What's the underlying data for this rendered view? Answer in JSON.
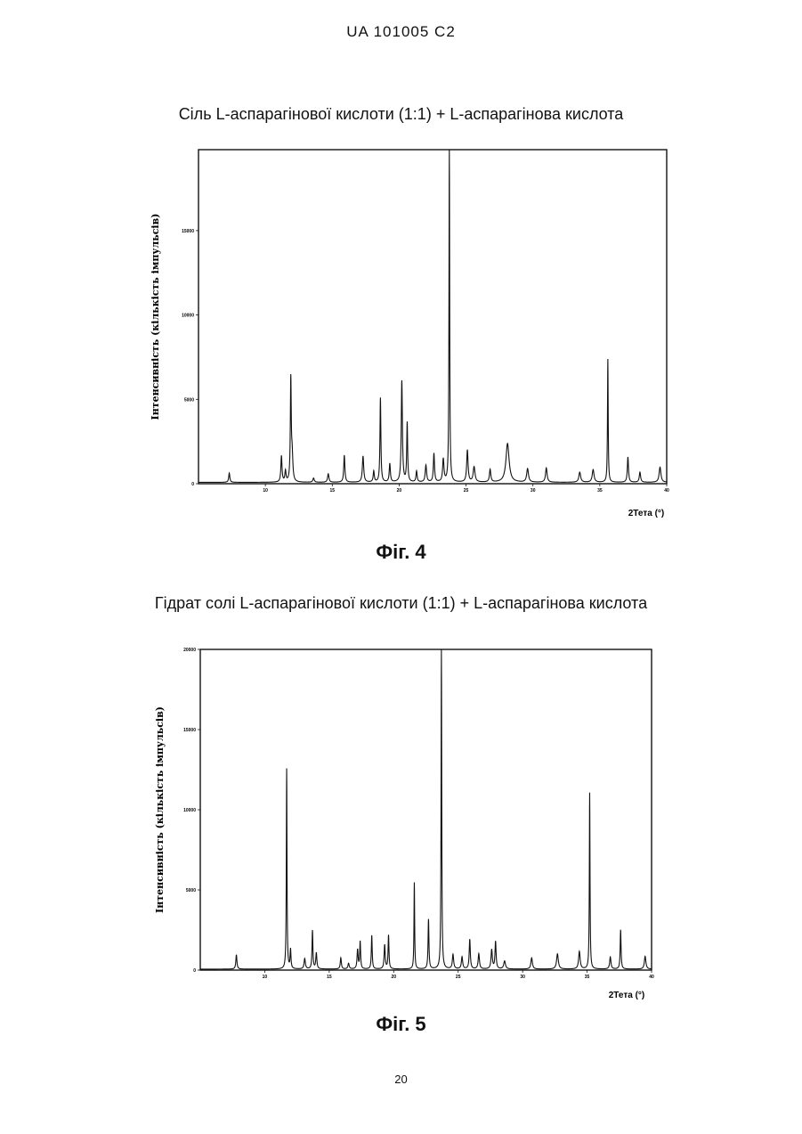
{
  "header": "UA 101005 C2",
  "page_number": "20",
  "figures": [
    {
      "caption": "Фіг. 4",
      "title": "Сіль L-аспарагінової кислоти (1:1) + L-аспарагінова кислота"
    },
    {
      "caption": "Фіг. 5",
      "title": "Гідрат солі L-аспарагінової кислоти (1:1) + L-аспарагінова кислота"
    }
  ],
  "chart_data": [
    {
      "type": "line",
      "title": "Сіль L-аспарагінової кислоти (1:1) + L-аспарагінова кислота",
      "xlabel": "2Тета (°)",
      "ylabel": "Інтенсивність (кількість імпульсів)",
      "xlim": [
        5,
        40
      ],
      "ylim": [
        0,
        19800
      ],
      "x_ticks": [
        "10",
        "15",
        "20",
        "25",
        "30",
        "35",
        "40"
      ],
      "y_ticks": [
        "0",
        "5000",
        "10000",
        "15000"
      ],
      "y_tick_values": [
        0,
        5000,
        10000,
        15000
      ],
      "grid": false,
      "baseline": 80,
      "peaks": [
        [
          7.3,
          550,
          0.05
        ],
        [
          11.2,
          1550,
          0.05
        ],
        [
          11.5,
          650,
          0.05
        ],
        [
          11.9,
          6000,
          0.04
        ],
        [
          12.0,
          1500,
          0.06
        ],
        [
          13.6,
          250,
          0.06
        ],
        [
          14.7,
          500,
          0.06
        ],
        [
          15.9,
          1600,
          0.05
        ],
        [
          17.3,
          1550,
          0.06
        ],
        [
          18.1,
          650,
          0.05
        ],
        [
          18.6,
          5000,
          0.04
        ],
        [
          19.3,
          1100,
          0.05
        ],
        [
          20.2,
          6000,
          0.05
        ],
        [
          20.6,
          3500,
          0.04
        ],
        [
          21.3,
          650,
          0.05
        ],
        [
          22.0,
          1000,
          0.06
        ],
        [
          22.6,
          1700,
          0.05
        ],
        [
          23.3,
          1350,
          0.06
        ],
        [
          23.75,
          19800,
          0.03
        ],
        [
          25.1,
          1900,
          0.06
        ],
        [
          25.6,
          900,
          0.08
        ],
        [
          26.8,
          750,
          0.06
        ],
        [
          28.1,
          2300,
          0.14
        ],
        [
          29.6,
          800,
          0.08
        ],
        [
          31.0,
          850,
          0.07
        ],
        [
          33.5,
          600,
          0.08
        ],
        [
          34.5,
          750,
          0.08
        ],
        [
          35.6,
          7300,
          0.03
        ],
        [
          37.1,
          1500,
          0.05
        ],
        [
          38.0,
          600,
          0.06
        ],
        [
          39.5,
          900,
          0.08
        ]
      ]
    },
    {
      "type": "line",
      "title": "Гідрат солі L-аспарагінової кислоти (1:1) + L-аспарагінова кислота",
      "xlabel": "2Тета (°)",
      "ylabel": "Інтенсивність (кількість імпульсів)",
      "xlim": [
        5,
        40
      ],
      "ylim": [
        0,
        20000
      ],
      "x_ticks": [
        "10",
        "15",
        "20",
        "25",
        "30",
        "35",
        "40"
      ],
      "y_ticks": [
        "0",
        "5000",
        "10000",
        "15000",
        "20000"
      ],
      "y_tick_values": [
        0,
        5000,
        10000,
        15000,
        20000
      ],
      "grid": false,
      "baseline": 60,
      "peaks": [
        [
          7.8,
          900,
          0.05
        ],
        [
          11.7,
          12500,
          0.03
        ],
        [
          12.0,
          1200,
          0.04
        ],
        [
          13.1,
          650,
          0.06
        ],
        [
          13.7,
          2400,
          0.04
        ],
        [
          14.0,
          1000,
          0.05
        ],
        [
          15.9,
          700,
          0.05
        ],
        [
          16.5,
          350,
          0.06
        ],
        [
          17.2,
          1200,
          0.05
        ],
        [
          17.4,
          1700,
          0.04
        ],
        [
          18.3,
          2100,
          0.04
        ],
        [
          19.3,
          1500,
          0.05
        ],
        [
          19.6,
          2100,
          0.04
        ],
        [
          21.6,
          5400,
          0.03
        ],
        [
          22.7,
          3100,
          0.04
        ],
        [
          23.7,
          20000,
          0.03
        ],
        [
          24.6,
          900,
          0.06
        ],
        [
          25.3,
          750,
          0.06
        ],
        [
          25.9,
          1850,
          0.05
        ],
        [
          26.6,
          950,
          0.06
        ],
        [
          27.6,
          1200,
          0.06
        ],
        [
          27.9,
          1700,
          0.05
        ],
        [
          28.6,
          500,
          0.08
        ],
        [
          30.7,
          700,
          0.07
        ],
        [
          32.7,
          950,
          0.08
        ],
        [
          34.4,
          1100,
          0.07
        ],
        [
          35.2,
          11000,
          0.03
        ],
        [
          36.8,
          750,
          0.06
        ],
        [
          37.6,
          2450,
          0.04
        ],
        [
          39.5,
          800,
          0.07
        ]
      ]
    }
  ]
}
